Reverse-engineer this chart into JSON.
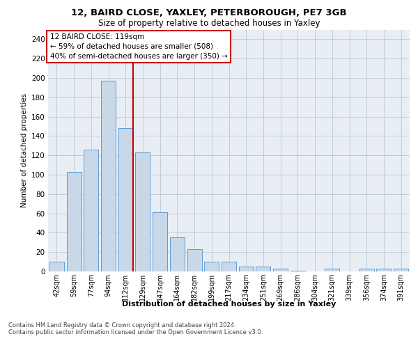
{
  "title1": "12, BAIRD CLOSE, YAXLEY, PETERBOROUGH, PE7 3GB",
  "title2": "Size of property relative to detached houses in Yaxley",
  "xlabel": "Distribution of detached houses by size in Yaxley",
  "ylabel": "Number of detached properties",
  "categories": [
    "42sqm",
    "59sqm",
    "77sqm",
    "94sqm",
    "112sqm",
    "129sqm",
    "147sqm",
    "164sqm",
    "182sqm",
    "199sqm",
    "217sqm",
    "234sqm",
    "251sqm",
    "269sqm",
    "286sqm",
    "304sqm",
    "321sqm",
    "339sqm",
    "356sqm",
    "374sqm",
    "391sqm"
  ],
  "values": [
    10,
    103,
    126,
    197,
    148,
    123,
    61,
    35,
    23,
    10,
    10,
    5,
    5,
    3,
    1,
    0,
    3,
    0,
    3,
    3,
    3
  ],
  "bar_facecolor": "#c8d8e8",
  "bar_edgecolor": "#5b9bd5",
  "ylim": [
    0,
    250
  ],
  "yticks": [
    0,
    20,
    40,
    60,
    80,
    100,
    120,
    140,
    160,
    180,
    200,
    220,
    240
  ],
  "vline_color": "#cc0000",
  "annotation_text1": "12 BAIRD CLOSE: 119sqm",
  "annotation_text2": "← 59% of detached houses are smaller (508)",
  "annotation_text3": "40% of semi-detached houses are larger (350) →",
  "annotation_box_color": "#cc0000",
  "background_color": "#e8eef4",
  "footer1": "Contains HM Land Registry data © Crown copyright and database right 2024.",
  "footer2": "Contains public sector information licensed under the Open Government Licence v3.0."
}
